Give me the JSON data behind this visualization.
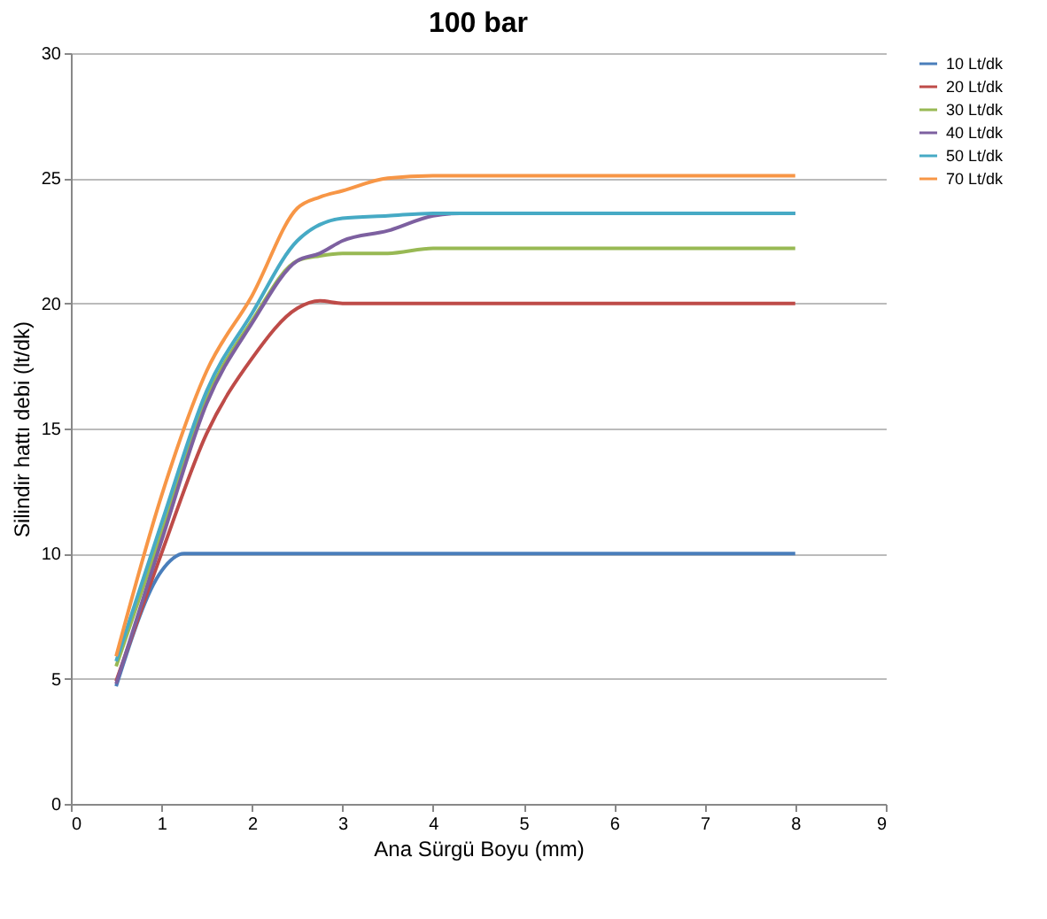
{
  "chart_data": {
    "type": "line",
    "title": "100 bar",
    "xlabel": "Ana Sürgü Boyu (mm)",
    "ylabel": "Silindir hattı debi (lt/dk)",
    "xlim": [
      0,
      9
    ],
    "xticks": [
      0,
      1,
      2,
      3,
      4,
      5,
      6,
      7,
      8,
      9
    ],
    "ylim": [
      0,
      30
    ],
    "yticks": [
      0,
      5,
      10,
      15,
      20,
      25,
      30
    ],
    "grid": "y",
    "legend": "right",
    "marker": "none",
    "line_style": "solid",
    "series": [
      {
        "name": "10 Lt/dk",
        "color": "#4a7ebb",
        "x": [
          0.5,
          1,
          1.25,
          1.5,
          8
        ],
        "values": [
          4.7,
          9.3,
          10,
          10,
          10
        ]
      },
      {
        "name": "20 Lt/dk",
        "color": "#be4b48",
        "x": [
          0.5,
          1,
          1.5,
          2,
          2.5,
          2.75,
          3,
          8
        ],
        "values": [
          4.9,
          10,
          14.8,
          17.8,
          19.8,
          20.1,
          20,
          20
        ]
      },
      {
        "name": "30 Lt/dk",
        "color": "#98b954",
        "x": [
          0.5,
          1,
          1.5,
          2,
          2.5,
          2.75,
          3,
          3.5,
          4,
          8
        ],
        "values": [
          5.5,
          10.8,
          16.2,
          19.3,
          21.7,
          21.9,
          22,
          22,
          22.2,
          22.2
        ]
      },
      {
        "name": "40 Lt/dk",
        "color": "#7d60a0",
        "x": [
          0.5,
          1,
          1.5,
          2,
          2.5,
          2.75,
          3,
          3.5,
          4,
          4.3,
          8
        ],
        "values": [
          4.8,
          10.5,
          16,
          19.2,
          21.7,
          22,
          22.5,
          22.9,
          23.5,
          23.6,
          23.6
        ]
      },
      {
        "name": "50 Lt/dk",
        "color": "#46aac5",
        "x": [
          0.5,
          1,
          1.5,
          2,
          2.5,
          3,
          3.5,
          4,
          8
        ],
        "values": [
          5.7,
          11.2,
          16.5,
          19.6,
          22.5,
          23.4,
          23.5,
          23.6,
          23.6
        ]
      },
      {
        "name": "70 Lt/dk",
        "color": "#f79646",
        "x": [
          0.5,
          1,
          1.5,
          2,
          2.5,
          2.75,
          3,
          3.5,
          4,
          8
        ],
        "values": [
          5.9,
          12.3,
          17.3,
          20.3,
          23.8,
          24.25,
          24.5,
          25,
          25.1,
          25.1
        ]
      }
    ]
  }
}
